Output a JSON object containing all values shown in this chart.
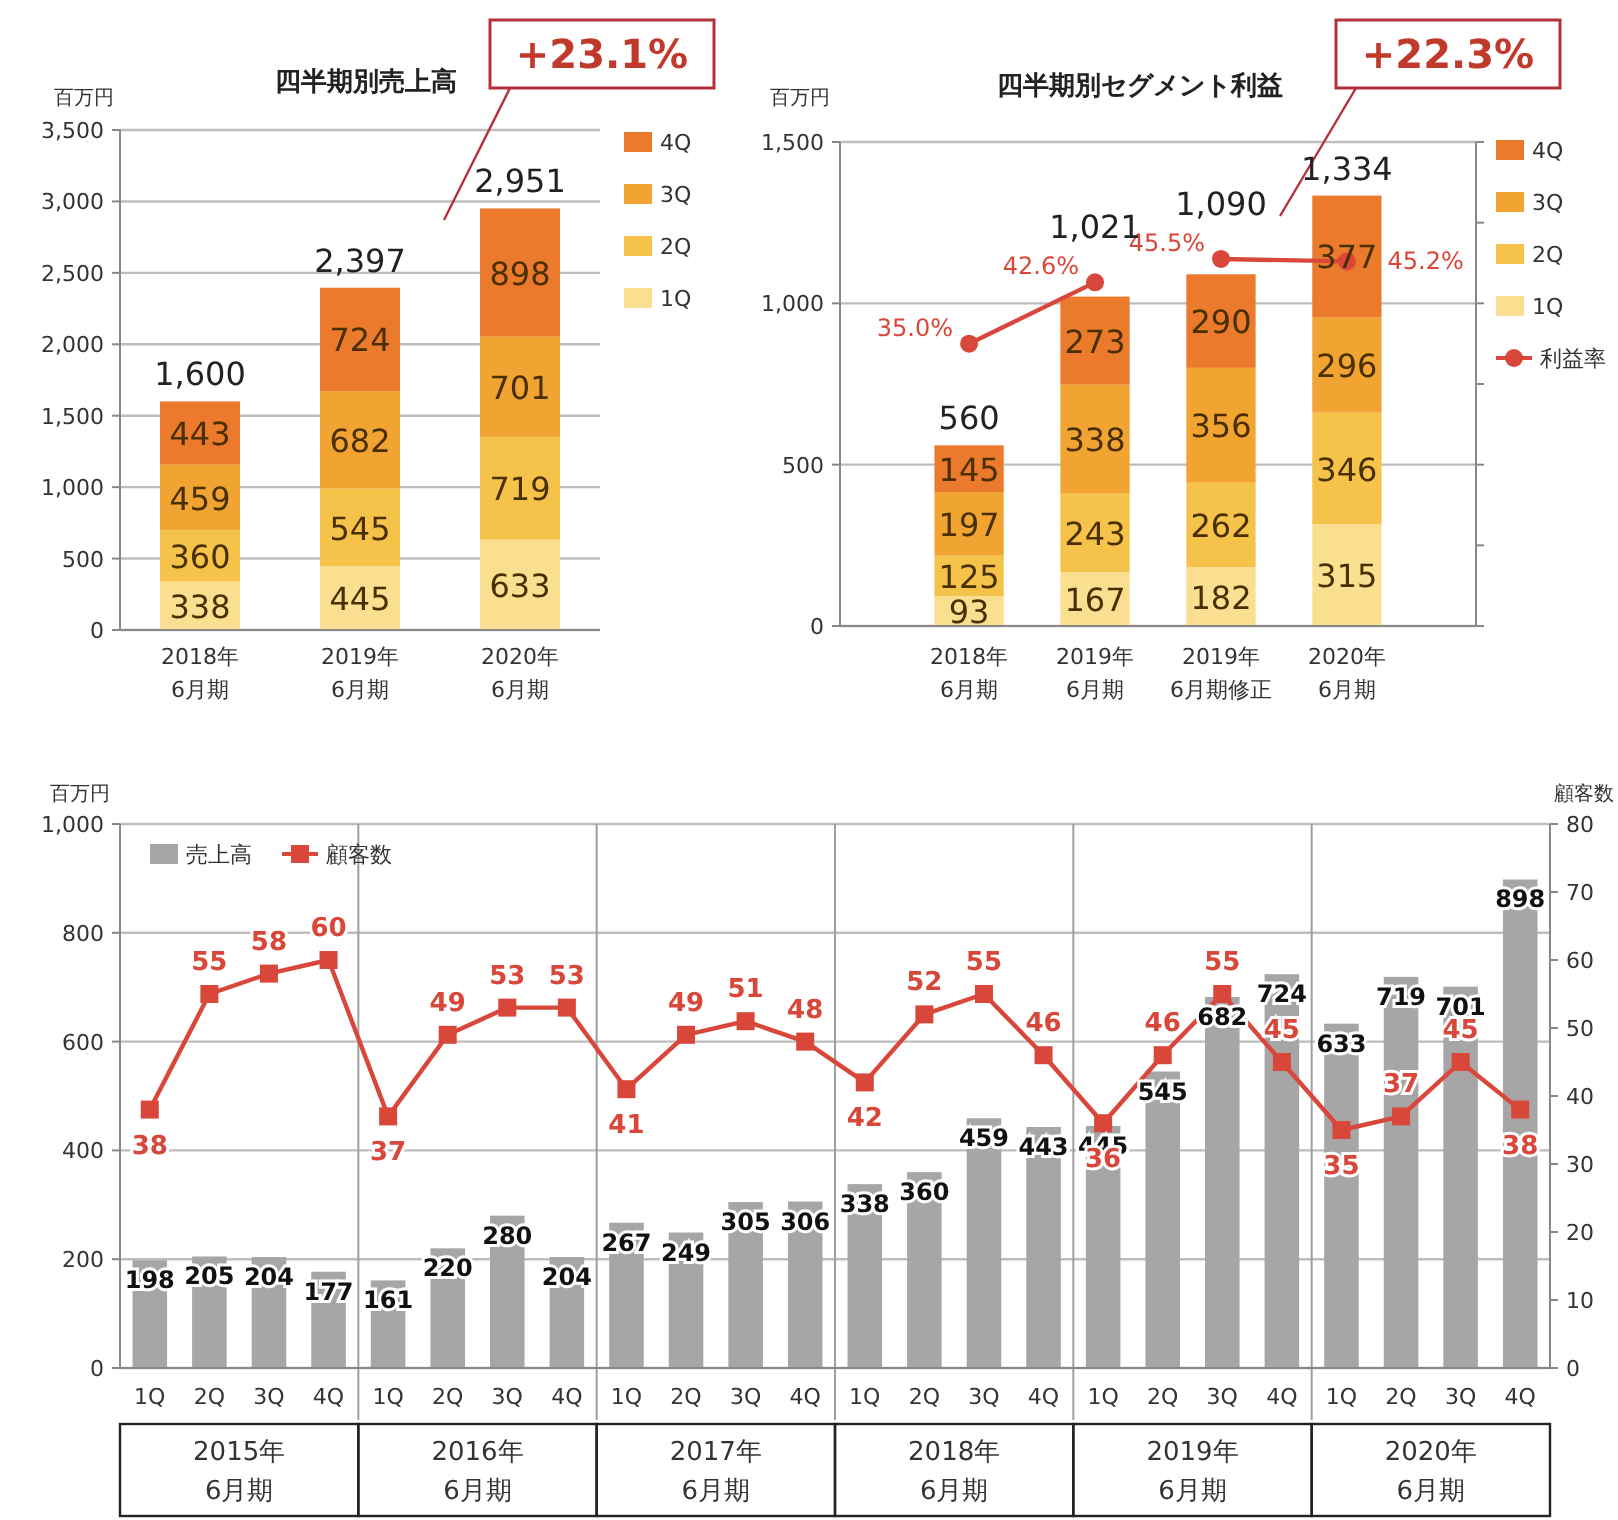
{
  "chart_data": [
    {
      "type": "bar",
      "stacked": true,
      "title": "四半期別売上高",
      "ylabel": "百万円",
      "categories": [
        "2018年\n6月期",
        "2019年\n6月期",
        "2020年\n6月期"
      ],
      "series": [
        {
          "name": "1Q",
          "color": "#f9df8f",
          "values": [
            338,
            445,
            633
          ]
        },
        {
          "name": "2Q",
          "color": "#f6c34a",
          "values": [
            360,
            545,
            719
          ]
        },
        {
          "name": "3Q",
          "color": "#f1a431",
          "values": [
            459,
            682,
            701
          ]
        },
        {
          "name": "4Q",
          "color": "#eb7a2c",
          "values": [
            443,
            724,
            898
          ]
        }
      ],
      "ylim": [
        0,
        3500
      ],
      "yticks": [
        0,
        500,
        {
          "value": 1000,
          "label": "1,000"
        },
        {
          "value": 1500,
          "label": "1,500"
        },
        {
          "value": 2000,
          "label": "2,000"
        },
        {
          "value": 2500,
          "label": "2,500"
        },
        {
          "value": 3000,
          "label": "3,000"
        },
        {
          "value": 3500,
          "label": "3,500"
        }
      ],
      "grid": "y",
      "legend": "right",
      "data_labels": true,
      "totals": [
        "1,600",
        "2,397",
        "2,951"
      ],
      "annotations": [
        "+23.1%"
      ]
    },
    {
      "type": "bar",
      "stacked": true,
      "title": "四半期別セグメント利益",
      "ylabel": "百万円",
      "categories": [
        "2018年\n6月期",
        "2019年\n6月期",
        "2019年\n6月期修正",
        "2020年\n6月期"
      ],
      "series": [
        {
          "name": "1Q",
          "color": "#f9df8f",
          "values": [
            93,
            167,
            182,
            315
          ]
        },
        {
          "name": "2Q",
          "color": "#f6c34a",
          "values": [
            125,
            243,
            262,
            346
          ]
        },
        {
          "name": "3Q",
          "color": "#f1a431",
          "values": [
            197,
            338,
            356,
            296
          ]
        },
        {
          "name": "4Q",
          "color": "#eb7a2c",
          "values": [
            145,
            273,
            290,
            377
          ]
        },
        {
          "name": "利益率",
          "type": "line",
          "axis": "y2",
          "color": "#d9473a",
          "values": [
            35.0,
            42.6,
            null,
            null
          ],
          "value_labels": [
            "35.0%",
            "42.6%",
            null,
            null
          ]
        },
        {
          "type": "line",
          "axis": "y2",
          "color": "#d9473a",
          "values": [
            null,
            null,
            45.5,
            45.2
          ],
          "value_labels": [
            null,
            null,
            "45.5%",
            "45.2%"
          ]
        }
      ],
      "ylim": [
        0,
        1500
      ],
      "yticks": [
        0,
        500,
        {
          "value": 1000,
          "label": "1,000"
        },
        {
          "value": 1500,
          "label": "1,500"
        }
      ],
      "y2lim": [
        0,
        60
      ],
      "y2ticks": [
        {
          "value": 0,
          "label": null
        },
        {
          "value": 10,
          "label": null
        },
        {
          "value": 20,
          "label": null
        },
        {
          "value": 30,
          "label": null
        },
        {
          "value": 40,
          "label": null
        },
        {
          "value": 50,
          "label": null
        },
        {
          "value": 60,
          "label": null
        }
      ],
      "grid": "y",
      "legend": "right",
      "marker": "circle",
      "data_labels": true,
      "totals": [
        "560",
        "1,021",
        "1,090",
        "1,334"
      ],
      "annotations": [
        "+22.3%"
      ]
    },
    {
      "type": "bar",
      "ylabel": "百万円",
      "y2label": "顧客数",
      "categories": [
        "1Q",
        "2Q",
        "3Q",
        "4Q",
        "1Q",
        "2Q",
        "3Q",
        "4Q",
        "1Q",
        "2Q",
        "3Q",
        "4Q",
        "1Q",
        "2Q",
        "3Q",
        "4Q",
        "1Q",
        "2Q",
        "3Q",
        "4Q",
        "1Q",
        "2Q",
        "3Q",
        "4Q"
      ],
      "series": [
        {
          "name": "売上高",
          "color": "#a6a6a6",
          "values": [
            198,
            205,
            204,
            177,
            161,
            220,
            280,
            204,
            267,
            249,
            305,
            306,
            338,
            360,
            459,
            443,
            445,
            545,
            682,
            724,
            633,
            719,
            701,
            898
          ]
        },
        {
          "name": "顧客数",
          "type": "line",
          "axis": "y2",
          "color": "#d9473a",
          "values": [
            38,
            55,
            58,
            60,
            37,
            49,
            53,
            53,
            41,
            49,
            51,
            48,
            42,
            52,
            55,
            46,
            36,
            46,
            55,
            45,
            35,
            37,
            45,
            38
          ]
        }
      ],
      "ylim": [
        0,
        1000
      ],
      "yticks": [
        0,
        200,
        400,
        600,
        800,
        {
          "value": 1000,
          "label": "1,000"
        }
      ],
      "y2lim": [
        0,
        80
      ],
      "y2ticks": [
        0,
        10,
        20,
        30,
        40,
        50,
        60,
        70,
        80
      ],
      "grid": "y",
      "legend": "top left",
      "marker": "square",
      "data_labels": true,
      "annotations": [
        "2015年\n6月期",
        "2016年\n6月期",
        "2017年\n6月期",
        "2018年\n6月期",
        "2019年\n6月期",
        "2020年\n6月期"
      ]
    }
  ]
}
